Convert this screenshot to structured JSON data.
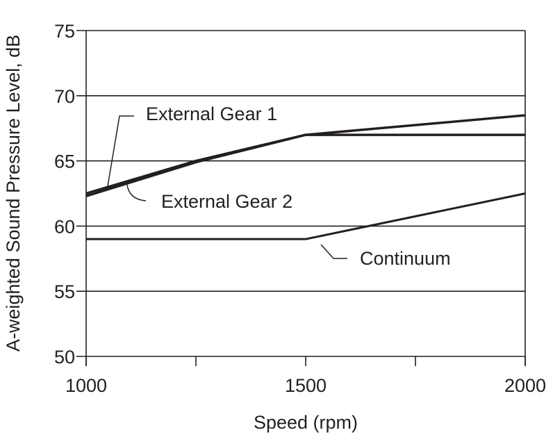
{
  "chart_data": {
    "type": "line",
    "title": "",
    "xlabel": "Speed (rpm)",
    "ylabel": "A-weighted Sound Pressure Level, dB",
    "xlim": [
      1000,
      2000
    ],
    "ylim": [
      50,
      75
    ],
    "x_ticks": [
      1000,
      1250,
      1500,
      1750,
      2000
    ],
    "x_tick_labels": [
      "1000",
      "",
      "1500",
      "",
      "2000"
    ],
    "y_ticks": [
      50,
      55,
      60,
      65,
      70,
      75
    ],
    "y_tick_labels": [
      "50",
      "55",
      "60",
      "65",
      "70",
      "75"
    ],
    "grid": "horizontal",
    "colors": {
      "line": "#231f20",
      "grid": "#231f20"
    },
    "series": [
      {
        "name": "External Gear 1",
        "x": [
          1000,
          1250,
          1500,
          2000
        ],
        "y": [
          62.5,
          65,
          67,
          68.5
        ]
      },
      {
        "name": "External Gear 2",
        "x": [
          1000,
          1250,
          1500,
          2000
        ],
        "y": [
          62.3,
          64.9,
          67,
          67
        ]
      },
      {
        "name": "Continuum",
        "x": [
          1000,
          1500,
          2000
        ],
        "y": [
          59,
          59,
          62.5
        ]
      }
    ]
  }
}
